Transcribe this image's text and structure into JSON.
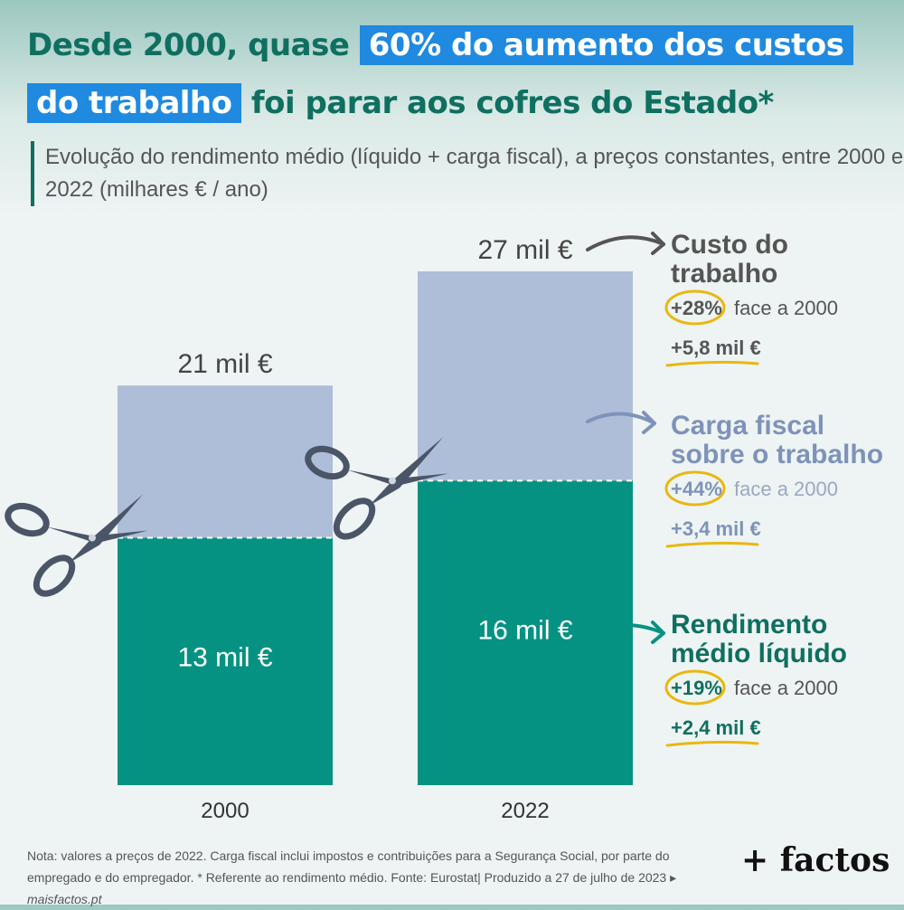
{
  "title": {
    "part1": "Desde 2000, quase ",
    "highlight1": "60% do aumento dos custos do trabalho",
    "part2": " foi parar aos cofres do Estado*"
  },
  "subtitle": "Evolução do rendimento médio (líquido + carga fiscal), a preços constantes, entre 2000 e 2022 (milhares € / ano)",
  "chart_data": {
    "type": "bar",
    "stacked": true,
    "categories": [
      "2000",
      "2022"
    ],
    "series": [
      {
        "name": "Rendimento médio líquido",
        "values": [
          13,
          16
        ],
        "color": "#069282"
      },
      {
        "name": "Carga fiscal sobre o trabalho",
        "values": [
          8,
          11
        ],
        "color": "#aebdd8"
      }
    ],
    "totals": [
      21,
      27
    ],
    "total_labels": [
      "21 mil €",
      "27 mil €"
    ],
    "segment_labels": [
      "13 mil €",
      "16 mil €"
    ],
    "ylim": [
      0,
      27
    ],
    "annotations": [
      {
        "label": "Custo do trabalho",
        "pct": "+28%",
        "pct_suffix": "face a 2000",
        "delta": "+5,8 mil €",
        "color": "#555555"
      },
      {
        "label": "Carga fiscal sobre o trabalho",
        "pct": "+44%",
        "pct_suffix": "face a 2000",
        "delta": "+3,4 mil €",
        "color": "#7e92ba"
      },
      {
        "label": "Rendimento médio líquido",
        "pct": "+19%",
        "pct_suffix": "face a 2000",
        "delta": "+2,4 mil €",
        "color": "#0f6f60"
      }
    ]
  },
  "footnote": {
    "text": "Nota: valores a preços de 2022. Carga fiscal inclui impostos e contribuições para a Segurança Social, por parte do empregado e do empregador. * Referente ao rendimento médio. Fonte: Eurostat| Produzido a 27 de julho de 2023 ▸ ",
    "site": "maisfactos.pt"
  },
  "brand": "+ factos",
  "colors": {
    "accent": "#1f8ae0",
    "title": "#0f6f60",
    "highlight": "#e8b812"
  }
}
